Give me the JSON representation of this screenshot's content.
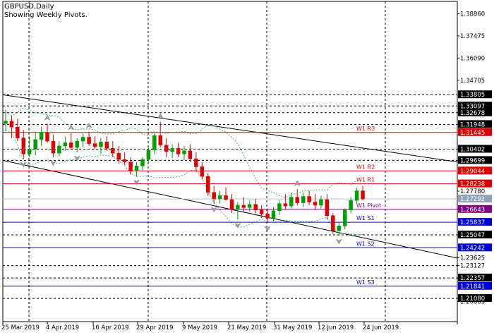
{
  "window": {
    "symbol_label": "GBPUSD,Daily",
    "indicator_label": "Showing Weekly Pivots."
  },
  "colors": {
    "background": "#ffffff",
    "grid": "#000000",
    "bull_candle": "#00a000",
    "bear_candle": "#e00000",
    "pivot_red": "#e00000",
    "pivot_purple": "#800080",
    "pivot_blue": "#0000e0",
    "channel_line": "#000000",
    "bands": "#3cb371",
    "fractal": "#a0a0a0"
  },
  "chart_data": {
    "type": "candlestick",
    "title": "GBPUSD,Daily",
    "subtitle": "Showing Weekly Pivots.",
    "ylim": [
      1.1963,
      1.3963
    ],
    "y_ticks": [
      1.3886,
      1.37475,
      1.3609,
      1.34705,
      1.32678,
      1.31948,
      1.30402,
      1.29699,
      1.2778,
      1.26643,
      1.25047,
      1.23625,
      1.23127,
      1.22357,
      1.2108,
      1.20885
    ],
    "x_labels": [
      "25 Mar 2019",
      "4 Apr 2019",
      "16 Apr 2019",
      "29 Apr 2019",
      "9 May 2019",
      "21 May 2019",
      "31 May 2019",
      "12 Jun 2019",
      "24 Jun 2019"
    ],
    "price_labels": [
      {
        "text": "1.33805",
        "price": 1.33805,
        "style": "plain"
      },
      {
        "text": "1.33097",
        "price": 1.33097,
        "style": "plain"
      },
      {
        "text": "1.32678",
        "price": 1.32678,
        "style": "plain"
      },
      {
        "text": "1.31948",
        "price": 1.31948,
        "style": "plain"
      },
      {
        "text": "1.31445",
        "price": 1.31445,
        "style": "red"
      },
      {
        "text": "1.30402",
        "price": 1.30402,
        "style": "plain"
      },
      {
        "text": "1.29699",
        "price": 1.29699,
        "style": "plain"
      },
      {
        "text": "1.29044",
        "price": 1.29044,
        "style": "red"
      },
      {
        "text": "1.28238",
        "price": 1.28238,
        "style": "red"
      },
      {
        "text": "1.27292",
        "price": 1.27292,
        "style": "gray"
      },
      {
        "text": "1.26643",
        "price": 1.26643,
        "style": "purple"
      },
      {
        "text": "1.25837",
        "price": 1.25837,
        "style": "blue"
      },
      {
        "text": "1.25047",
        "price": 1.25047,
        "style": "plain"
      },
      {
        "text": "1.24242",
        "price": 1.24242,
        "style": "blue"
      },
      {
        "text": "1.22357",
        "price": 1.22357,
        "style": "plain"
      },
      {
        "text": "1.21841",
        "price": 1.21841,
        "style": "blue"
      },
      {
        "text": "1.21080",
        "price": 1.2108,
        "style": "plain"
      }
    ],
    "dotted_levels": [
      1.33805,
      1.33097,
      1.32678,
      1.31948,
      1.30402,
      1.29699,
      1.25047,
      1.23127,
      1.22357,
      1.2108
    ],
    "pivot_lines": [
      {
        "name": "W1  R3",
        "price": 1.31445,
        "color": "#e00000"
      },
      {
        "name": "W1  R2",
        "price": 1.29044,
        "color": "#e00000"
      },
      {
        "name": "W1  R1",
        "price": 1.28238,
        "color": "#e00000"
      },
      {
        "name": "W1  Pivot",
        "price": 1.26643,
        "color": "#800080"
      },
      {
        "name": "W1  S1",
        "price": 1.25837,
        "color": "#0000e0"
      },
      {
        "name": "W1  S2",
        "price": 1.24242,
        "color": "#0000e0"
      },
      {
        "name": "W1  S3",
        "price": 1.21841,
        "color": "#0000e0"
      }
    ],
    "current_price": 1.27292,
    "candles": [
      {
        "o": 1.32,
        "h": 1.3288,
        "l": 1.315,
        "c": 1.3215
      },
      {
        "o": 1.3215,
        "h": 1.325,
        "l": 1.311,
        "c": 1.3178
      },
      {
        "o": 1.3178,
        "h": 1.323,
        "l": 1.309,
        "c": 1.311
      },
      {
        "o": 1.311,
        "h": 1.316,
        "l": 1.298,
        "c": 1.301
      },
      {
        "o": 1.301,
        "h": 1.312,
        "l": 1.299,
        "c": 1.304
      },
      {
        "o": 1.304,
        "h": 1.315,
        "l": 1.3,
        "c": 1.31
      },
      {
        "o": 1.31,
        "h": 1.318,
        "l": 1.306,
        "c": 1.3145
      },
      {
        "o": 1.3145,
        "h": 1.32,
        "l": 1.308,
        "c": 1.309
      },
      {
        "o": 1.309,
        "h": 1.313,
        "l": 1.299,
        "c": 1.3015
      },
      {
        "o": 1.3015,
        "h": 1.309,
        "l": 1.2995,
        "c": 1.306
      },
      {
        "o": 1.306,
        "h": 1.312,
        "l": 1.303,
        "c": 1.308
      },
      {
        "o": 1.308,
        "h": 1.314,
        "l": 1.304,
        "c": 1.305
      },
      {
        "o": 1.305,
        "h": 1.311,
        "l": 1.302,
        "c": 1.309
      },
      {
        "o": 1.309,
        "h": 1.314,
        "l": 1.305,
        "c": 1.3115
      },
      {
        "o": 1.3115,
        "h": 1.315,
        "l": 1.306,
        "c": 1.3075
      },
      {
        "o": 1.3075,
        "h": 1.312,
        "l": 1.304,
        "c": 1.3055
      },
      {
        "o": 1.3055,
        "h": 1.311,
        "l": 1.301,
        "c": 1.3085
      },
      {
        "o": 1.3085,
        "h": 1.312,
        "l": 1.303,
        "c": 1.3045
      },
      {
        "o": 1.3045,
        "h": 1.309,
        "l": 1.299,
        "c": 1.3015
      },
      {
        "o": 1.3015,
        "h": 1.306,
        "l": 1.295,
        "c": 1.2975
      },
      {
        "o": 1.2975,
        "h": 1.302,
        "l": 1.294,
        "c": 1.296
      },
      {
        "o": 1.296,
        "h": 1.299,
        "l": 1.288,
        "c": 1.2905
      },
      {
        "o": 1.2905,
        "h": 1.296,
        "l": 1.287,
        "c": 1.2935
      },
      {
        "o": 1.2935,
        "h": 1.299,
        "l": 1.291,
        "c": 1.2975
      },
      {
        "o": 1.2975,
        "h": 1.305,
        "l": 1.295,
        "c": 1.3035
      },
      {
        "o": 1.3035,
        "h": 1.314,
        "l": 1.301,
        "c": 1.3125
      },
      {
        "o": 1.3125,
        "h": 1.321,
        "l": 1.305,
        "c": 1.3065
      },
      {
        "o": 1.3065,
        "h": 1.311,
        "l": 1.299,
        "c": 1.3025
      },
      {
        "o": 1.3025,
        "h": 1.307,
        "l": 1.2985,
        "c": 1.3045
      },
      {
        "o": 1.3045,
        "h": 1.308,
        "l": 1.299,
        "c": 1.301
      },
      {
        "o": 1.301,
        "h": 1.306,
        "l": 1.297,
        "c": 1.303
      },
      {
        "o": 1.303,
        "h": 1.307,
        "l": 1.296,
        "c": 1.298
      },
      {
        "o": 1.298,
        "h": 1.302,
        "l": 1.29,
        "c": 1.293
      },
      {
        "o": 1.293,
        "h": 1.296,
        "l": 1.285,
        "c": 1.287
      },
      {
        "o": 1.287,
        "h": 1.289,
        "l": 1.275,
        "c": 1.277
      },
      {
        "o": 1.277,
        "h": 1.281,
        "l": 1.27,
        "c": 1.273
      },
      {
        "o": 1.273,
        "h": 1.278,
        "l": 1.27,
        "c": 1.275
      },
      {
        "o": 1.275,
        "h": 1.28,
        "l": 1.272,
        "c": 1.2725
      },
      {
        "o": 1.2725,
        "h": 1.276,
        "l": 1.264,
        "c": 1.2665
      },
      {
        "o": 1.2665,
        "h": 1.271,
        "l": 1.26,
        "c": 1.269
      },
      {
        "o": 1.269,
        "h": 1.274,
        "l": 1.265,
        "c": 1.2675
      },
      {
        "o": 1.2675,
        "h": 1.272,
        "l": 1.265,
        "c": 1.2695
      },
      {
        "o": 1.2695,
        "h": 1.273,
        "l": 1.264,
        "c": 1.266
      },
      {
        "o": 1.266,
        "h": 1.269,
        "l": 1.261,
        "c": 1.2635
      },
      {
        "o": 1.2635,
        "h": 1.267,
        "l": 1.258,
        "c": 1.261
      },
      {
        "o": 1.261,
        "h": 1.268,
        "l": 1.259,
        "c": 1.2655
      },
      {
        "o": 1.2655,
        "h": 1.272,
        "l": 1.263,
        "c": 1.27
      },
      {
        "o": 1.27,
        "h": 1.276,
        "l": 1.266,
        "c": 1.2685
      },
      {
        "o": 1.2685,
        "h": 1.277,
        "l": 1.267,
        "c": 1.274
      },
      {
        "o": 1.274,
        "h": 1.279,
        "l": 1.269,
        "c": 1.2705
      },
      {
        "o": 1.2705,
        "h": 1.277,
        "l": 1.268,
        "c": 1.2745
      },
      {
        "o": 1.2745,
        "h": 1.278,
        "l": 1.269,
        "c": 1.271
      },
      {
        "o": 1.271,
        "h": 1.276,
        "l": 1.266,
        "c": 1.269
      },
      {
        "o": 1.269,
        "h": 1.275,
        "l": 1.267,
        "c": 1.2725
      },
      {
        "o": 1.2725,
        "h": 1.276,
        "l": 1.26,
        "c": 1.2625
      },
      {
        "o": 1.2625,
        "h": 1.264,
        "l": 1.251,
        "c": 1.253
      },
      {
        "o": 1.253,
        "h": 1.258,
        "l": 1.25,
        "c": 1.256
      },
      {
        "o": 1.256,
        "h": 1.267,
        "l": 1.254,
        "c": 1.266
      },
      {
        "o": 1.266,
        "h": 1.274,
        "l": 1.264,
        "c": 1.272
      },
      {
        "o": 1.272,
        "h": 1.28,
        "l": 1.27,
        "c": 1.278
      },
      {
        "o": 1.278,
        "h": 1.281,
        "l": 1.272,
        "c": 1.2729
      }
    ]
  }
}
